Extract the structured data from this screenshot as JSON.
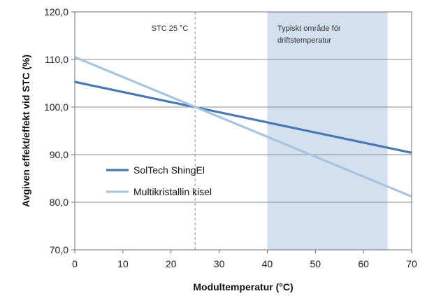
{
  "chart_data": {
    "type": "line",
    "xlabel": "Modultemperatur (°C)",
    "ylabel": "Avgiven effekt/effekt vid STC (%)",
    "xlim": [
      0,
      70
    ],
    "ylim": [
      70,
      120
    ],
    "xticks": [
      "0",
      "10",
      "20",
      "30",
      "40",
      "50",
      "60",
      "70"
    ],
    "yticks": [
      "70,0",
      "80,0",
      "90,0",
      "100,0",
      "110,0",
      "120,0"
    ],
    "xtick_values": [
      0,
      10,
      20,
      30,
      40,
      50,
      60,
      70
    ],
    "ytick_values": [
      70,
      80,
      90,
      100,
      110,
      120
    ],
    "grid": "horizontal",
    "legend_position": "center-left",
    "series": [
      {
        "name": "SolTech ShingEl",
        "color": "#4a78b4",
        "x": [
          0,
          70
        ],
        "y": [
          105.3,
          90.4
        ]
      },
      {
        "name": "Multikristallin kisel",
        "color": "#a8c4e0",
        "x": [
          0,
          70
        ],
        "y": [
          110.5,
          81.2
        ]
      }
    ],
    "reference_line": {
      "x": 25,
      "label": "STC 25 °C"
    },
    "shaded_region": {
      "x_start": 40,
      "x_end": 65,
      "label_line1": "Typiskt område för",
      "label_line2": "driftstemperatur",
      "color": "#d3e0ef"
    }
  }
}
